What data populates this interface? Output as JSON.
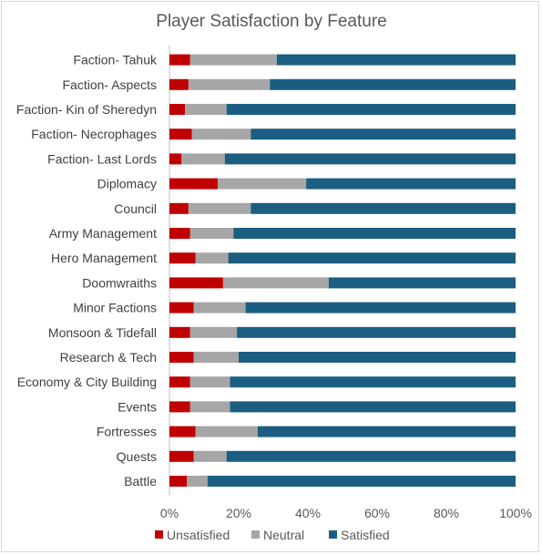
{
  "chart_data": {
    "type": "bar",
    "orientation": "horizontal",
    "stacked": "percent",
    "title": "Player Satisfaction by Feature",
    "xlabel": "",
    "ylabel": "",
    "xlim": [
      0,
      1
    ],
    "x_ticks": [
      "0%",
      "20%",
      "40%",
      "60%",
      "80%",
      "100%"
    ],
    "grid": false,
    "legend_position": "bottom",
    "categories": [
      "Faction- Tahuk",
      "Faction- Aspects",
      "Faction- Kin of Sheredyn",
      "Faction- Necrophages",
      "Faction- Last Lords",
      "Diplomacy",
      "Council",
      "Army Management",
      "Hero Management",
      "Doomwraiths",
      "Minor Factions",
      "Monsoon & Tidefall",
      "Research & Tech",
      "Economy & City Building",
      "Events",
      "Fortresses",
      "Quests",
      "Battle"
    ],
    "series": [
      {
        "name": "Unsatisfied",
        "color": "#c00000",
        "values": [
          0.06,
          0.055,
          0.045,
          0.065,
          0.035,
          0.14,
          0.055,
          0.06,
          0.075,
          0.155,
          0.07,
          0.06,
          0.07,
          0.06,
          0.06,
          0.075,
          0.07,
          0.05
        ]
      },
      {
        "name": "Neutral",
        "color": "#a6a6a6",
        "values": [
          0.25,
          0.235,
          0.12,
          0.17,
          0.125,
          0.255,
          0.18,
          0.125,
          0.095,
          0.305,
          0.15,
          0.135,
          0.13,
          0.115,
          0.115,
          0.18,
          0.095,
          0.06
        ]
      },
      {
        "name": "Satisfied",
        "color": "#1b5e82",
        "values": [
          0.69,
          0.71,
          0.835,
          0.765,
          0.84,
          0.605,
          0.765,
          0.815,
          0.83,
          0.54,
          0.78,
          0.805,
          0.8,
          0.825,
          0.825,
          0.745,
          0.835,
          0.89
        ]
      }
    ]
  }
}
